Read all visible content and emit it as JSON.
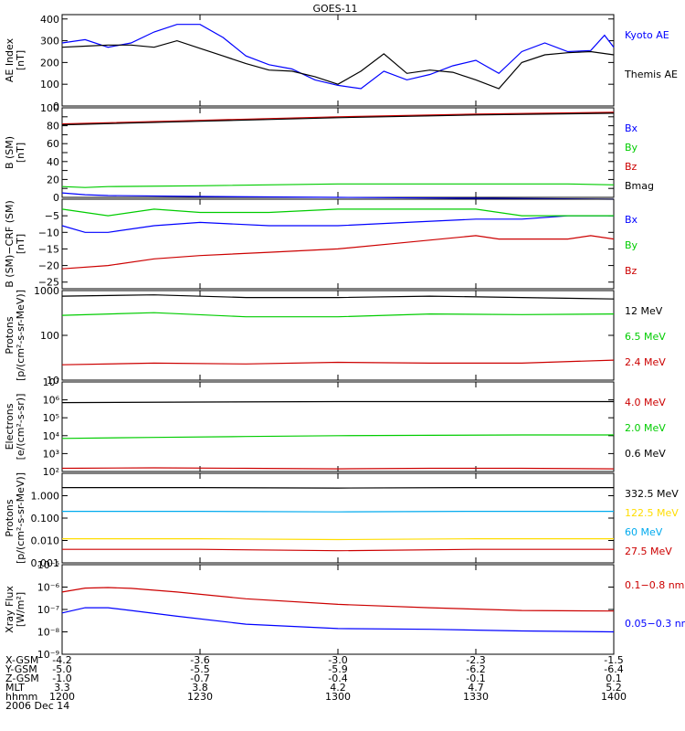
{
  "colors": {
    "black": "#000000",
    "blue": "#0000ff",
    "green": "#00cc00",
    "red": "#cc0000",
    "yellow": "#ffdd00",
    "cyan": "#00aaee"
  },
  "chart_data": {
    "type": "line",
    "title": "GOES-11",
    "x": {
      "unit": "hhmm",
      "start": "1200",
      "end": "1400",
      "range_minutes": [
        0,
        120
      ],
      "ticks_minutes": [
        0,
        30,
        60,
        90,
        120
      ]
    },
    "footer": {
      "rows": [
        {
          "label": "X-GSM",
          "values": [
            "-4.2",
            "-3.6",
            "-3.0",
            "-2.3",
            "-1.5"
          ]
        },
        {
          "label": "Y-GSM",
          "values": [
            "-5.0",
            "-5.5",
            "-5.9",
            "-6.2",
            "-6.4"
          ]
        },
        {
          "label": "Z-GSM",
          "values": [
            "-1.0",
            "-0.7",
            "-0.4",
            "-0.1",
            "0.1"
          ]
        },
        {
          "label": "MLT",
          "values": [
            "3.3",
            "3.8",
            "4.2",
            "4.7",
            "5.2"
          ]
        },
        {
          "label": "hhmm",
          "values": [
            "1200",
            "1230",
            "1300",
            "1330",
            "1400"
          ]
        }
      ],
      "date": "2006 Dec 14"
    },
    "panels": [
      {
        "ylabel": "AE Index\n[nT]",
        "scale": "linear",
        "ylim": [
          0,
          420
        ],
        "ticks": [
          0,
          100,
          200,
          300,
          400
        ],
        "tick_labels": [
          "0",
          "100",
          "200",
          "300",
          "400"
        ],
        "series": [
          {
            "name": "Kyoto AE",
            "color": "#0000ff",
            "x": [
              0,
              5,
              10,
              15,
              20,
              25,
              30,
              35,
              40,
              45,
              50,
              55,
              60,
              65,
              70,
              75,
              80,
              85,
              90,
              95,
              100,
              105,
              110,
              115,
              118,
              120
            ],
            "y": [
              290,
              305,
              270,
              290,
              340,
              375,
              375,
              315,
              230,
              190,
              170,
              120,
              95,
              80,
              160,
              120,
              145,
              185,
              210,
              150,
              250,
              290,
              250,
              255,
              325,
              270
            ]
          },
          {
            "name": "Themis AE",
            "color": "#000000",
            "x": [
              0,
              5,
              10,
              15,
              20,
              25,
              30,
              35,
              40,
              45,
              50,
              55,
              60,
              65,
              70,
              75,
              80,
              85,
              90,
              95,
              100,
              105,
              110,
              115,
              120
            ],
            "y": [
              270,
              275,
              280,
              280,
              270,
              300,
              265,
              230,
              195,
              165,
              160,
              135,
              100,
              160,
              240,
              150,
              165,
              155,
              120,
              80,
              200,
              235,
              245,
              250,
              235
            ]
          }
        ]
      },
      {
        "ylabel": "B (SM)\n[nT]",
        "scale": "linear",
        "ylim": [
          0,
          100
        ],
        "ticks": [
          0,
          10,
          20,
          30,
          40,
          50,
          60,
          70,
          80,
          90,
          100
        ],
        "tick_labels": [
          "0",
          "",
          "20",
          "",
          "40",
          "",
          "60",
          "",
          "80",
          "",
          "100"
        ],
        "series": [
          {
            "name": "Bx",
            "color": "#0000ff",
            "x": [
              0,
              5,
              10,
              30,
              60,
              90,
              120
            ],
            "y": [
              5,
              3,
              2,
              1,
              0,
              -1,
              -2
            ]
          },
          {
            "name": "By",
            "color": "#00cc00",
            "x": [
              0,
              5,
              10,
              30,
              60,
              90,
              110,
              120
            ],
            "y": [
              12,
              11,
              12,
              13,
              15,
              15,
              15,
              14
            ]
          },
          {
            "name": "Bz",
            "color": "#cc0000",
            "x": [
              0,
              30,
              60,
              90,
              120
            ],
            "y": [
              82,
              86,
              90,
              93,
              95
            ]
          },
          {
            "name": "Bmag",
            "color": "#000000",
            "x": [
              0,
              30,
              60,
              90,
              120
            ],
            "y": [
              81,
              85,
              89,
              92,
              94
            ]
          }
        ]
      },
      {
        "ylabel": "B (SM)−CRF (SM)\n[nT]",
        "scale": "linear",
        "ylim": [
          -27,
          0
        ],
        "ticks": [
          -25,
          -20,
          -15,
          -10,
          -5
        ],
        "tick_labels": [
          "−25",
          "−20",
          "−15",
          "−10",
          "−5"
        ],
        "series": [
          {
            "name": "Bx",
            "color": "#0000ff",
            "x": [
              0,
              5,
              10,
              20,
              30,
              45,
              60,
              75,
              90,
              100,
              110,
              120
            ],
            "y": [
              -8,
              -10,
              -10,
              -8,
              -7,
              -8,
              -8,
              -7,
              -6,
              -6,
              -5,
              -5
            ]
          },
          {
            "name": "By",
            "color": "#00cc00",
            "x": [
              0,
              5,
              10,
              20,
              30,
              45,
              60,
              75,
              90,
              100,
              110,
              120
            ],
            "y": [
              -3,
              -4,
              -5,
              -3,
              -4,
              -4,
              -3,
              -3,
              -3,
              -5,
              -5,
              -5
            ]
          },
          {
            "name": "Bz",
            "color": "#cc0000",
            "x": [
              0,
              10,
              20,
              30,
              45,
              60,
              75,
              90,
              95,
              100,
              110,
              115,
              120
            ],
            "y": [
              -21,
              -20,
              -18,
              -17,
              -16,
              -15,
              -13,
              -11,
              -12,
              -12,
              -12,
              -11,
              -12
            ]
          }
        ]
      },
      {
        "ylabel": "Protons\n[p/(cm²-s-sr-MeV)]",
        "scale": "log",
        "ylim": [
          10,
          1000
        ],
        "ticks": [
          10,
          100,
          1000
        ],
        "tick_labels": [
          "10",
          "100",
          "1000"
        ],
        "series": [
          {
            "name": "12 MeV",
            "color": "#000000",
            "x": [
              0,
              20,
              40,
              60,
              80,
              100,
              120
            ],
            "y": [
              750,
              800,
              700,
              700,
              750,
              700,
              650
            ]
          },
          {
            "name": "6.5 MeV",
            "color": "#00cc00",
            "x": [
              0,
              20,
              40,
              60,
              80,
              100,
              120
            ],
            "y": [
              280,
              320,
              260,
              260,
              300,
              290,
              300
            ]
          },
          {
            "name": "2.4 MeV",
            "color": "#cc0000",
            "x": [
              0,
              20,
              40,
              60,
              80,
              100,
              120
            ],
            "y": [
              22,
              24,
              23,
              25,
              24,
              24,
              28
            ]
          }
        ]
      },
      {
        "ylabel": "Electrons\n[e/(cm²-s-sr)]",
        "scale": "log",
        "ylim": [
          100,
          10000000
        ],
        "ticks": [
          100,
          1000,
          10000,
          100000,
          1000000,
          10000000
        ],
        "tick_labels": [
          "10²",
          "10³",
          "10⁴",
          "10⁵",
          "10⁶",
          "10⁷"
        ],
        "series": [
          {
            "name": "4.0 MeV",
            "color": "#cc0000",
            "x": [
              0,
              20,
              40,
              60,
              80,
              100,
              120
            ],
            "y": [
              150,
              160,
              150,
              140,
              150,
              150,
              140
            ]
          },
          {
            "name": "2.0 MeV",
            "color": "#00cc00",
            "x": [
              0,
              20,
              40,
              60,
              80,
              100,
              120
            ],
            "y": [
              7000,
              8000,
              9000,
              10000,
              10500,
              11000,
              11000
            ]
          },
          {
            "name": "0.6 MeV",
            "color": "#000000",
            "x": [
              0,
              30,
              60,
              90,
              120
            ],
            "y": [
              700000,
              750000,
              800000,
              800000,
              800000
            ]
          }
        ]
      },
      {
        "ylabel": "Protons\n[p/(cm²-s-sr-MeV)]",
        "scale": "log",
        "ylim": [
          0.001,
          10
        ],
        "ticks": [
          0.001,
          0.01,
          0.1,
          1
        ],
        "tick_labels": [
          "0.001",
          "0.010",
          "0.100",
          "1.000"
        ],
        "series": [
          {
            "name": "332.5 MeV",
            "color": "#000000",
            "x": [
              0,
              30,
              60,
              90,
              120
            ],
            "y": [
              2.3,
              2.3,
              2.2,
              2.3,
              2.3
            ]
          },
          {
            "name": "122.5 MeV",
            "color": "#ffdd00",
            "x": [
              0,
              30,
              60,
              90,
              120
            ],
            "y": [
              0.012,
              0.012,
              0.011,
              0.012,
              0.012
            ]
          },
          {
            "name": "60 MeV",
            "color": "#00aaee",
            "x": [
              0,
              30,
              60,
              90,
              120
            ],
            "y": [
              0.2,
              0.2,
              0.19,
              0.2,
              0.2
            ]
          },
          {
            "name": "27.5 MeV",
            "color": "#cc0000",
            "x": [
              0,
              30,
              60,
              90,
              120
            ],
            "y": [
              0.004,
              0.004,
              0.0035,
              0.004,
              0.004
            ]
          }
        ]
      },
      {
        "ylabel": "Xray  Flux\n[W/m²]",
        "scale": "log",
        "ylim": [
          1e-09,
          1e-05
        ],
        "ticks": [
          1e-09,
          1e-08,
          1e-07,
          1e-06,
          1e-05
        ],
        "tick_labels": [
          "10⁻⁹",
          "10⁻⁸",
          "10⁻⁷",
          "10⁻⁶",
          "10⁻⁵"
        ],
        "series": [
          {
            "name": "0.1−0.8 nm",
            "color": "#cc0000",
            "x": [
              0,
              5,
              10,
              15,
              25,
              40,
              60,
              80,
              100,
              120
            ],
            "y": [
              6e-07,
              9e-07,
              9.5e-07,
              8.8e-07,
              6e-07,
              3e-07,
              1.7e-07,
              1.2e-07,
              9e-08,
              8.5e-08
            ]
          },
          {
            "name": "0.05−0.3 nm",
            "color": "#0000ff",
            "x": [
              0,
              5,
              10,
              15,
              25,
              40,
              60,
              80,
              100,
              120
            ],
            "y": [
              7e-08,
              1.2e-07,
              1.2e-07,
              9e-08,
              5e-08,
              2.2e-08,
              1.4e-08,
              1.3e-08,
              1.1e-08,
              1e-08
            ]
          }
        ]
      }
    ]
  }
}
